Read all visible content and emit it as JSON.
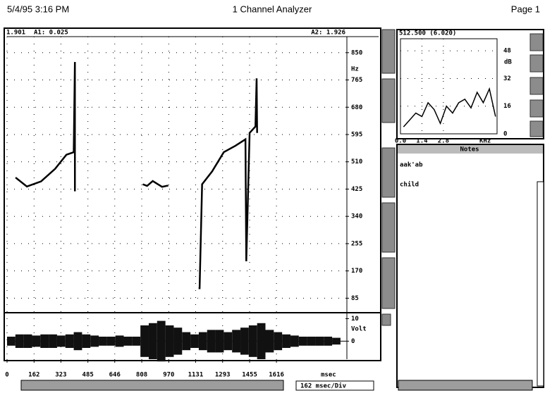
{
  "header": {
    "date": "5/4/95 3:16 PM",
    "title": "1 Channel Analyzer",
    "page": "Page 1"
  },
  "cursor": {
    "time": "1.901",
    "a1": "A1: 0.025",
    "a2": "A2: 1.926"
  },
  "pitch": {
    "y_unit": "Hz",
    "xlim": [
      0,
      2030
    ],
    "ylim": [
      42,
      900
    ],
    "yticks": [
      850,
      765,
      680,
      595,
      510,
      425,
      340,
      255,
      170,
      85
    ],
    "x": [
      51,
      119,
      204,
      288,
      356,
      400,
      407,
      407,
      null,
      814,
      840,
      874,
      930,
      967,
      null,
      1149,
      1155,
      1170,
      1230,
      1300,
      1370,
      1430,
      1435,
      1455,
      1490,
      1497,
      1500
    ],
    "values": [
      461,
      433,
      449,
      488,
      532,
      540,
      821,
      418,
      null,
      440,
      435,
      450,
      432,
      436,
      null,
      116,
      116,
      440,
      480,
      540,
      560,
      580,
      200,
      600,
      620,
      770,
      600
    ]
  },
  "waveform": {
    "y_unit": "Volt",
    "ylim": [
      -8,
      12
    ],
    "yticks": [
      10,
      0
    ],
    "x": [
      0,
      50,
      100,
      150,
      200,
      250,
      300,
      350,
      400,
      450,
      500,
      550,
      600,
      650,
      700,
      750,
      800,
      850,
      900,
      950,
      1000,
      1050,
      1100,
      1150,
      1200,
      1250,
      1300,
      1350,
      1400,
      1450,
      1500,
      1550,
      1600,
      1650,
      1700,
      1750,
      1800,
      1850,
      1900,
      1950
    ],
    "envelope": [
      2,
      3,
      3,
      2.5,
      3,
      3,
      2.5,
      3,
      4,
      3,
      2.5,
      2,
      2,
      2.5,
      2,
      2,
      7,
      8,
      9,
      7,
      6,
      4,
      3,
      4,
      5,
      5,
      4,
      5,
      6,
      7,
      8,
      5,
      4,
      3,
      2.5,
      2,
      2,
      2,
      2,
      1.5
    ]
  },
  "time_axis": {
    "xticks": [
      0,
      162,
      323,
      485,
      646,
      808,
      970,
      1131,
      1293,
      1455,
      1616
    ],
    "unit": "msec",
    "scale": "162 msec/Div"
  },
  "spectrum": {
    "readout": "512.500 (6.020)",
    "x_unit": "KHz",
    "y_unit": "dB",
    "xlim": [
      0,
      6.3
    ],
    "xticks": [
      {
        "value": 0,
        "label": "0.0"
      },
      1.4,
      2.8
    ],
    "ylim": [
      0,
      55
    ],
    "yticks": [
      48,
      32,
      16,
      0
    ],
    "x": [
      0.2,
      0.6,
      1.0,
      1.4,
      1.8,
      2.2,
      2.6,
      3.0,
      3.4,
      3.8,
      4.2,
      4.6,
      5.0,
      5.4,
      5.8,
      6.2
    ],
    "values": [
      4,
      8,
      12,
      10,
      18,
      14,
      6,
      16,
      12,
      18,
      20,
      15,
      24,
      18,
      26,
      10
    ]
  },
  "notes": {
    "title": "Notes",
    "lines": [
      "aak'ab",
      "child"
    ]
  }
}
